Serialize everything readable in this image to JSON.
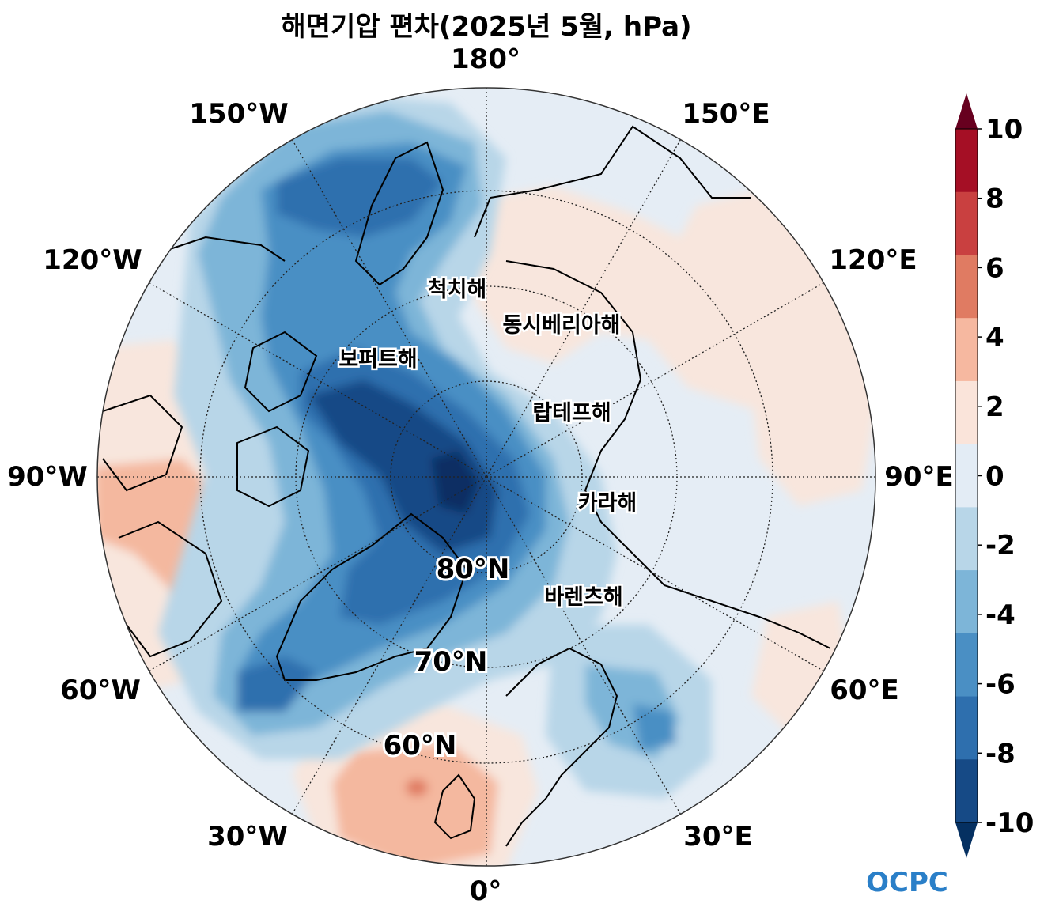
{
  "title": "해면기압 편차(2025년 5월, hPa)",
  "lon_labels": [
    {
      "id": "lon-180",
      "text": "180°"
    },
    {
      "id": "lon-150w",
      "text": "150°W"
    },
    {
      "id": "lon-150e",
      "text": "150°E"
    },
    {
      "id": "lon-120w",
      "text": "120°W"
    },
    {
      "id": "lon-120e",
      "text": "120°E"
    },
    {
      "id": "lon-90w",
      "text": "90°W"
    },
    {
      "id": "lon-90e",
      "text": "90°E"
    },
    {
      "id": "lon-60w",
      "text": "60°W"
    },
    {
      "id": "lon-60e",
      "text": "60°E"
    },
    {
      "id": "lon-30w",
      "text": "30°W"
    },
    {
      "id": "lon-30e",
      "text": "30°E"
    },
    {
      "id": "lon-0",
      "text": "0°"
    }
  ],
  "lat_labels": [
    {
      "id": "lat-80",
      "text": "80°N"
    },
    {
      "id": "lat-70",
      "text": "70°N"
    },
    {
      "id": "lat-60",
      "text": "60°N"
    }
  ],
  "sea_labels": [
    {
      "id": "chukchi",
      "text": "척치해"
    },
    {
      "id": "east-siberian",
      "text": "동시베리아해"
    },
    {
      "id": "beaufort",
      "text": "보퍼트해"
    },
    {
      "id": "laptev",
      "text": "랍테프해"
    },
    {
      "id": "kara",
      "text": "카라해"
    },
    {
      "id": "barents",
      "text": "바렌츠해"
    }
  ],
  "colorbar": {
    "levels": [
      "10",
      "8",
      "6",
      "4",
      "2",
      "0",
      "-2",
      "-4",
      "-6",
      "-8",
      "-10"
    ],
    "colors": [
      "#67001f",
      "#b2182b",
      "#d6604d",
      "#f4a582",
      "#fddbc7",
      "#f7e8df",
      "#deebf7",
      "#c1daea",
      "#92c5de",
      "#4393c3",
      "#2166ac",
      "#053061"
    ],
    "bins": [
      "#a50f25",
      "#c94040",
      "#e07b62",
      "#f6b8a0",
      "#fae4da",
      "#e3ecf5",
      "#b8d6e8",
      "#7db5d8",
      "#4a8fc4",
      "#2e6fae",
      "#164a86"
    ]
  },
  "logo": "OCPC"
}
